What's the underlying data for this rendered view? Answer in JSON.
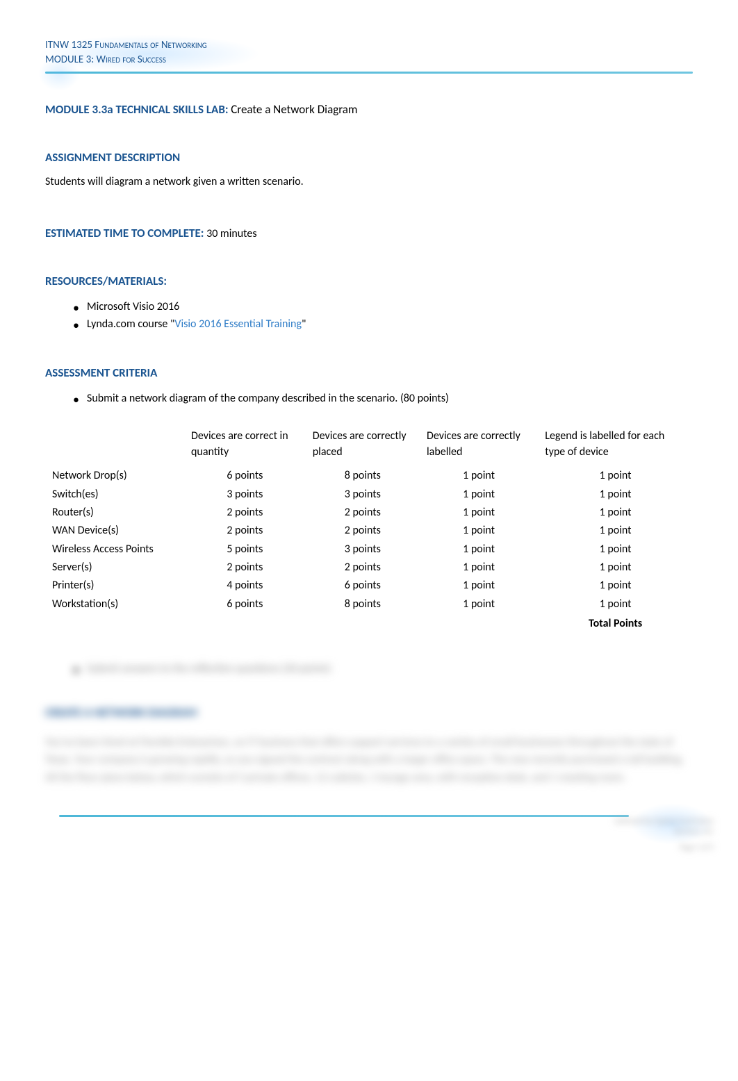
{
  "header": {
    "line1": "ITNW 1325 Fundamentals of Networking",
    "line2": "MODULE 3: Wired for Success"
  },
  "module_title": {
    "label": "MODULE 3.3a TECHNICAL SKILLS LAB:",
    "text": "Create a Network Diagram"
  },
  "assignment": {
    "heading": "ASSIGNMENT DESCRIPTION",
    "text": "Students will diagram a network given a written scenario."
  },
  "time": {
    "label": "ESTIMATED TIME TO COMPLETE:",
    "value": "30 minutes"
  },
  "resources": {
    "heading": "RESOURCES/MATERIALS:",
    "items": [
      {
        "prefix": "Microsoft Visio 2016",
        "link": "",
        "suffix": ""
      },
      {
        "prefix": "Lynda.com course \"",
        "link": "Visio 2016 Essential Training",
        "suffix": "\""
      }
    ]
  },
  "criteria": {
    "heading": "ASSESSMENT CRITERIA",
    "bullet": "Submit a network diagram of the company described in the scenario. (80 points)"
  },
  "table": {
    "headers": [
      "",
      "Devices are correct in quantity",
      "Devices are correctly placed",
      "Devices are correctly labelled",
      "Legend is labelled for each type of device"
    ],
    "rows": [
      {
        "label": "Network Drop(s)",
        "c1": "6 points",
        "c2": "8 points",
        "c3": "1 point",
        "c4": "1 point"
      },
      {
        "label": "Switch(es)",
        "c1": "3 points",
        "c2": "3 points",
        "c3": "1 point",
        "c4": "1 point"
      },
      {
        "label": "Router(s)",
        "c1": "2 points",
        "c2": "2 points",
        "c3": "1 point",
        "c4": "1 point"
      },
      {
        "label": "WAN Device(s)",
        "c1": "2 points",
        "c2": "2 points",
        "c3": "1 point",
        "c4": "1 point"
      },
      {
        "label": "Wireless Access Points",
        "c1": "5 points",
        "c2": "3 points",
        "c3": "1 point",
        "c4": "1 point"
      },
      {
        "label": "Server(s)",
        "c1": "2 points",
        "c2": "2 points",
        "c3": "1 point",
        "c4": "1 point"
      },
      {
        "label": "Printer(s)",
        "c1": "4 points",
        "c2": "6 points",
        "c3": "1 point",
        "c4": "1 point"
      },
      {
        "label": "Workstation(s)",
        "c1": "6 points",
        "c2": "8 points",
        "c3": "1 point",
        "c4": "1 point"
      }
    ],
    "total_label": "Total Points"
  },
  "blurred": {
    "bullet1": "Submit answers to the reflection questions (20 points)",
    "heading": "CREATE A NETWORK DIAGRAM",
    "paragraph": "You've been hired at Fiemble Enterprises, an IT business that offers support services to a variety of small businesses throughout the state of Texas. Your company is growing rapidly, so you signed the contract along with a larger office space. The new recently purchased a tall building. All the floor plans below, which consists of 3 private offices, 12 cubicles, 1 lounge area, with reception desk, and 1 meeting room."
  },
  "footer": {
    "text1": "authored by Cypress Curriculum Services, LLC",
    "text2": "Page 1 of 5"
  }
}
